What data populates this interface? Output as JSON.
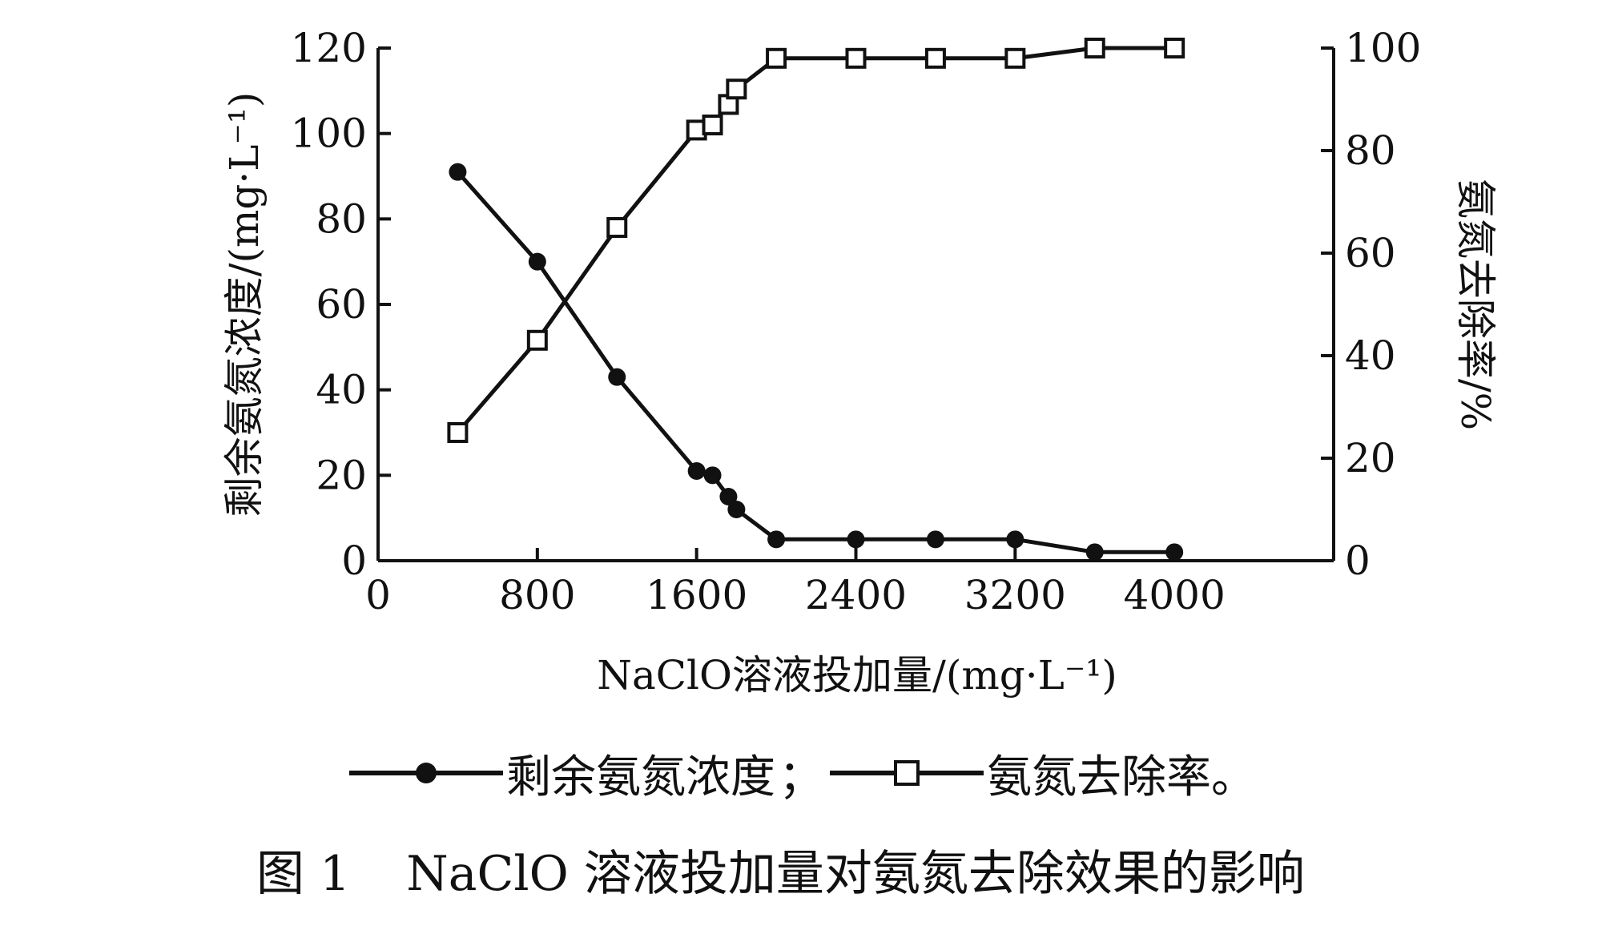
{
  "chart_data": {
    "type": "line",
    "xlabel": "NaClO溶液投加量/(mg·L⁻¹)",
    "ylabel_left": "剩余氨氮浓度/(mg·L⁻¹)",
    "ylabel_right": "氨氮去除率/%",
    "xlim": [
      0,
      4800
    ],
    "ylim_left": [
      0,
      120
    ],
    "ylim_right": [
      0,
      100
    ],
    "x_ticks": [
      "0",
      "800",
      "1600",
      "2400",
      "3200",
      "4000"
    ],
    "y_left_ticks": [
      "0",
      "20",
      "40",
      "60",
      "80",
      "100",
      "120"
    ],
    "y_right_ticks": [
      "0",
      "20",
      "40",
      "60",
      "80",
      "100"
    ],
    "grid": false,
    "series": [
      {
        "name": "剩余氨氮浓度",
        "axis": "left",
        "marker": "filled-circle",
        "x": [
          400,
          800,
          1200,
          1600,
          1680,
          1760,
          1800,
          2000,
          2400,
          2800,
          3200,
          3600,
          4000
        ],
        "values": [
          91,
          70,
          43,
          21,
          20,
          15,
          12,
          5,
          5,
          5,
          5,
          2,
          2
        ]
      },
      {
        "name": "氨氮去除率",
        "axis": "right",
        "marker": "open-square",
        "x": [
          400,
          800,
          1200,
          1600,
          1680,
          1760,
          1800,
          2000,
          2400,
          2800,
          3200,
          3600,
          4000
        ],
        "values": [
          25,
          43,
          65,
          84,
          85,
          89,
          92,
          98,
          98,
          98,
          98,
          100,
          100
        ]
      }
    ]
  },
  "legend": {
    "item1_label": "剩余氨氮浓度",
    "separator": "；",
    "item2_label": "氨氮去除率",
    "end": "。"
  },
  "caption": {
    "number": "图 1",
    "text": "NaClO 溶液投加量对氨氮去除效果的影响"
  }
}
